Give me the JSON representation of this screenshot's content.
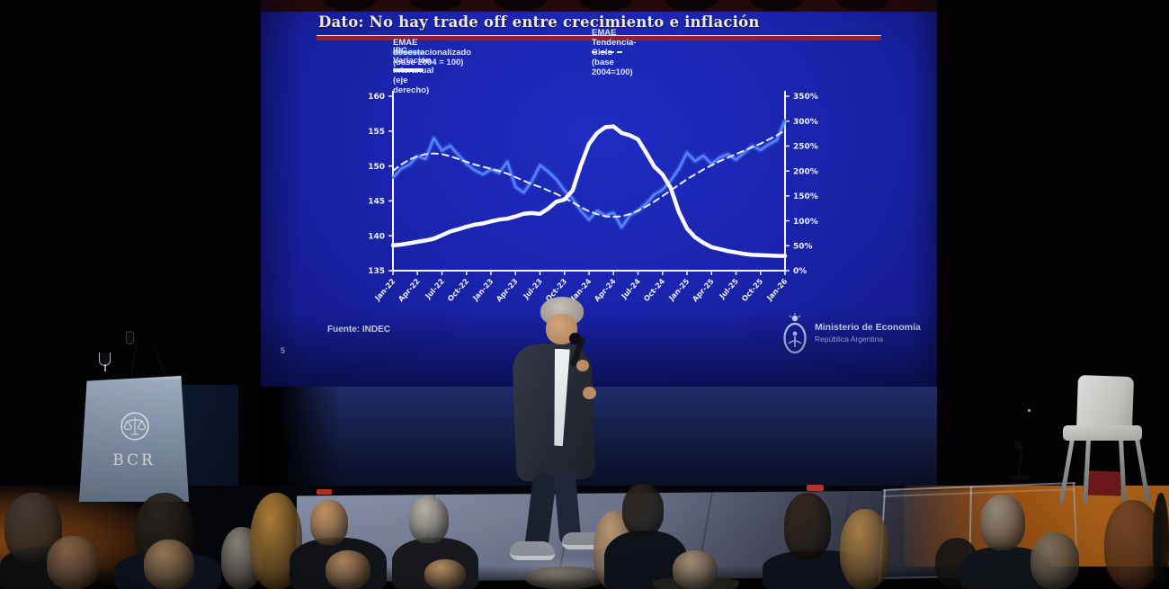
{
  "slide": {
    "title": "Dato: No hay trade off entre crecimiento e inflación",
    "page_number": "5",
    "source_note": "Fuente: INDEC",
    "footer_logo": {
      "icon": "argentina-coat-of-arms-icon",
      "line1": "Ministerio de Economía",
      "line2": "República Argentina"
    },
    "legend": [
      {
        "label": "EMAE desestacionalizado (base 2004 = 100)",
        "style": "solid-blue"
      },
      {
        "label": "EMAE Tendencia-Ciclo (base 2004=100)",
        "style": "dashed-white"
      },
      {
        "label": "IPC - Variación interanual (eje derecho)",
        "style": "solid-white-thick"
      }
    ],
    "colors": {
      "background": "#1a24ae",
      "title_text": "#f2e9d8",
      "title_underline": "#8c2131",
      "emae_line": "#5586ff",
      "trend_line": "#e8eeff",
      "ipc_line": "#fafaff"
    }
  },
  "chart_data": {
    "type": "line",
    "frequency": "monthly",
    "grid": false,
    "legend_position": "top",
    "x_tick_labels": [
      "Jan-22",
      "Apr-22",
      "Jul-22",
      "Oct-22",
      "Jan-23",
      "Apr-23",
      "Jul-23",
      "Oct-23",
      "Jan-24",
      "Apr-24",
      "Jul-24",
      "Oct-24",
      "Jan-25",
      "Apr-25",
      "Jul-25",
      "Oct-25",
      "Jan-26"
    ],
    "x_tick_every_n_points": 3,
    "left_axis": {
      "min": 135,
      "max": 160,
      "ticks": [
        160,
        155,
        150,
        145,
        140,
        135
      ]
    },
    "right_axis": {
      "min": 0,
      "max": 350,
      "ticks": [
        350,
        300,
        250,
        200,
        150,
        100,
        50,
        0
      ],
      "unit": "%"
    },
    "series": [
      {
        "name": "EMAE desestacionalizado (base 2004 = 100)",
        "axis": "left",
        "style": "solid",
        "color": "#5586ff",
        "values": [
          148.3,
          149.6,
          150.2,
          151.4,
          151.0,
          154.0,
          152.2,
          152.9,
          151.6,
          150.3,
          149.4,
          148.8,
          149.5,
          149.0,
          150.6,
          147.0,
          146.2,
          147.8,
          150.1,
          149.2,
          148.1,
          146.5,
          145.3,
          143.6,
          142.3,
          143.6,
          142.9,
          143.3,
          141.2,
          142.9,
          143.6,
          144.6,
          145.9,
          146.6,
          147.9,
          149.6,
          151.9,
          150.7,
          151.5,
          150.3,
          151.2,
          151.7,
          150.9,
          151.9,
          152.9,
          152.3,
          153.1,
          153.7,
          156.6
        ]
      },
      {
        "name": "EMAE Tendencia-Ciclo (base 2004=100)",
        "axis": "left",
        "style": "dashed",
        "color": "#e8eeff",
        "values": [
          149.3,
          150.2,
          150.9,
          151.4,
          151.7,
          151.8,
          151.7,
          151.4,
          151.0,
          150.6,
          150.2,
          149.9,
          149.6,
          149.3,
          148.9,
          148.4,
          147.9,
          147.4,
          147.0,
          146.5,
          146.0,
          145.4,
          144.8,
          144.1,
          143.5,
          143.1,
          142.8,
          142.7,
          142.8,
          143.1,
          143.6,
          144.2,
          144.9,
          145.7,
          146.5,
          147.3,
          148.1,
          148.8,
          149.5,
          150.1,
          150.7,
          151.2,
          151.7,
          152.2,
          152.7,
          153.2,
          153.8,
          154.4,
          155.1
        ]
      },
      {
        "name": "IPC - Variación interanual (eje derecho)",
        "axis": "right",
        "style": "solid-thick",
        "color": "#fafaff",
        "values": [
          50.7,
          52.3,
          55.1,
          58.0,
          60.7,
          64.0,
          71.0,
          78.5,
          83.0,
          88.0,
          92.4,
          94.8,
          98.8,
          102.5,
          104.3,
          108.8,
          114.2,
          115.6,
          113.8,
          124.4,
          138.3,
          142.7,
          160.9,
          211.4,
          254.2,
          276.2,
          287.9,
          289.4,
          276.4,
          271.5,
          263.4,
          236.7,
          209.0,
          193.0,
          166.0,
          117.8,
          84.5,
          66.9,
          55.9,
          47.3,
          43.5,
          39.4,
          36.6,
          33.6,
          31.8,
          31.3,
          30.5,
          29.8,
          29.5
        ]
      }
    ]
  },
  "podium": {
    "label": "BCR",
    "emblem": "bcr-scales-emblem-icon"
  }
}
